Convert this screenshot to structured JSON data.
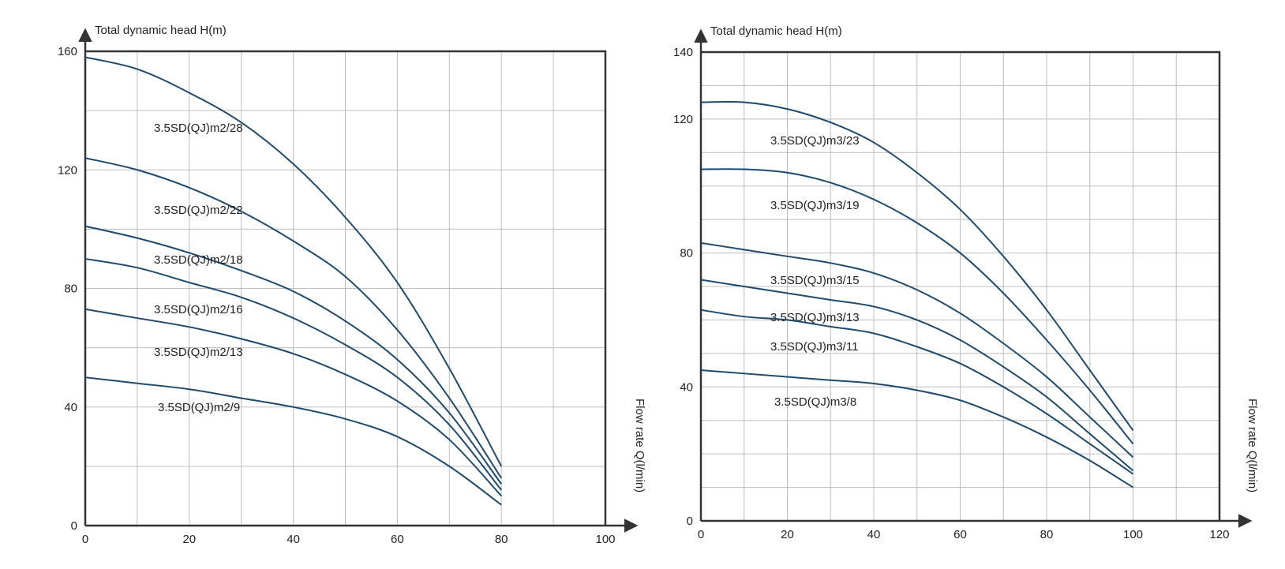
{
  "colors": {
    "curve": "#1e4a6e",
    "grid": "#bdbdbd",
    "frame": "#333333",
    "text": "#222222"
  },
  "chart_data": [
    {
      "type": "line",
      "ylabel": "Total dynamic head H(m)",
      "xlabel": "Flow rate Q(l/min)",
      "xlim": [
        0,
        100
      ],
      "ylim": [
        0,
        160
      ],
      "xticks": [
        0,
        20,
        40,
        60,
        80,
        100
      ],
      "yticks": [
        0,
        40,
        80,
        120,
        160
      ],
      "xtick_labels": [
        "0",
        "20",
        "40",
        "60",
        "80",
        "100"
      ],
      "ytick_labels": [
        "0",
        "40",
        "80",
        "120",
        "160"
      ],
      "grid": true,
      "series": [
        {
          "name": "3.5SD(QJ)m2/28",
          "x": [
            0,
            10,
            20,
            30,
            40,
            50,
            60,
            70,
            80
          ],
          "y": [
            158,
            154,
            146,
            136,
            122,
            104,
            82,
            53,
            20
          ]
        },
        {
          "name": "3.5SD(QJ)m2/22",
          "x": [
            0,
            10,
            20,
            30,
            40,
            50,
            60,
            70,
            80
          ],
          "y": [
            124,
            120,
            114,
            106,
            96,
            84,
            66,
            43,
            16
          ]
        },
        {
          "name": "3.5SD(QJ)m2/18",
          "x": [
            0,
            10,
            20,
            30,
            40,
            50,
            60,
            70,
            80
          ],
          "y": [
            101,
            97,
            92,
            86,
            79,
            69,
            56,
            38,
            14
          ]
        },
        {
          "name": "3.5SD(QJ)m2/16",
          "x": [
            0,
            10,
            20,
            30,
            40,
            50,
            60,
            70,
            80
          ],
          "y": [
            90,
            87,
            82,
            77,
            70,
            61,
            50,
            34,
            12
          ]
        },
        {
          "name": "3.5SD(QJ)m2/13",
          "x": [
            0,
            10,
            20,
            30,
            40,
            50,
            60,
            70,
            80
          ],
          "y": [
            73,
            70,
            67,
            63,
            58,
            51,
            42,
            29,
            10
          ]
        },
        {
          "name": "3.5SD(QJ)m2/9",
          "x": [
            0,
            10,
            20,
            30,
            40,
            50,
            60,
            70,
            80
          ],
          "y": [
            50,
            48,
            46,
            43,
            40,
            36,
            30,
            20,
            7
          ]
        }
      ]
    },
    {
      "type": "line",
      "ylabel": "Total dynamic head H(m)",
      "xlabel": "Flow rate Q(l/min)",
      "xlim": [
        0,
        120
      ],
      "ylim": [
        0,
        140
      ],
      "xticks": [
        0,
        20,
        40,
        60,
        80,
        100,
        120
      ],
      "yticks": [
        0,
        40,
        80,
        120,
        140
      ],
      "xtick_labels": [
        "0",
        "20",
        "40",
        "60",
        "80",
        "100",
        "120"
      ],
      "ytick_labels": [
        "0",
        "40",
        "80",
        "120",
        "140"
      ],
      "grid": true,
      "series": [
        {
          "name": "3.5SD(QJ)m3/23",
          "x": [
            0,
            10,
            20,
            30,
            40,
            50,
            60,
            70,
            80,
            90,
            100
          ],
          "y": [
            125,
            125,
            123,
            119,
            113,
            104,
            93,
            79,
            63,
            45,
            27
          ]
        },
        {
          "name": "3.5SD(QJ)m3/19",
          "x": [
            0,
            10,
            20,
            30,
            40,
            50,
            60,
            70,
            80,
            90,
            100
          ],
          "y": [
            105,
            105,
            104,
            101,
            96,
            89,
            80,
            68,
            54,
            39,
            23
          ]
        },
        {
          "name": "3.5SD(QJ)m3/15",
          "x": [
            0,
            10,
            20,
            30,
            40,
            50,
            60,
            70,
            80,
            90,
            100
          ],
          "y": [
            83,
            81,
            79,
            77,
            74,
            69,
            62,
            53,
            43,
            31,
            19
          ]
        },
        {
          "name": "3.5SD(QJ)m3/13",
          "x": [
            0,
            10,
            20,
            30,
            40,
            50,
            60,
            70,
            80,
            90,
            100
          ],
          "y": [
            72,
            70,
            68,
            66,
            64,
            60,
            54,
            46,
            37,
            26,
            15
          ]
        },
        {
          "name": "3.5SD(QJ)m3/11",
          "x": [
            0,
            10,
            20,
            30,
            40,
            50,
            60,
            70,
            80,
            90,
            100
          ],
          "y": [
            63,
            61,
            60,
            58,
            56,
            52,
            47,
            40,
            32,
            23,
            14
          ]
        },
        {
          "name": "3.5SD(QJ)m3/8",
          "x": [
            0,
            10,
            20,
            30,
            40,
            50,
            60,
            70,
            80,
            90,
            100
          ],
          "y": [
            45,
            44,
            43,
            42,
            41,
            39,
            36,
            31,
            25,
            18,
            10
          ]
        }
      ]
    }
  ]
}
